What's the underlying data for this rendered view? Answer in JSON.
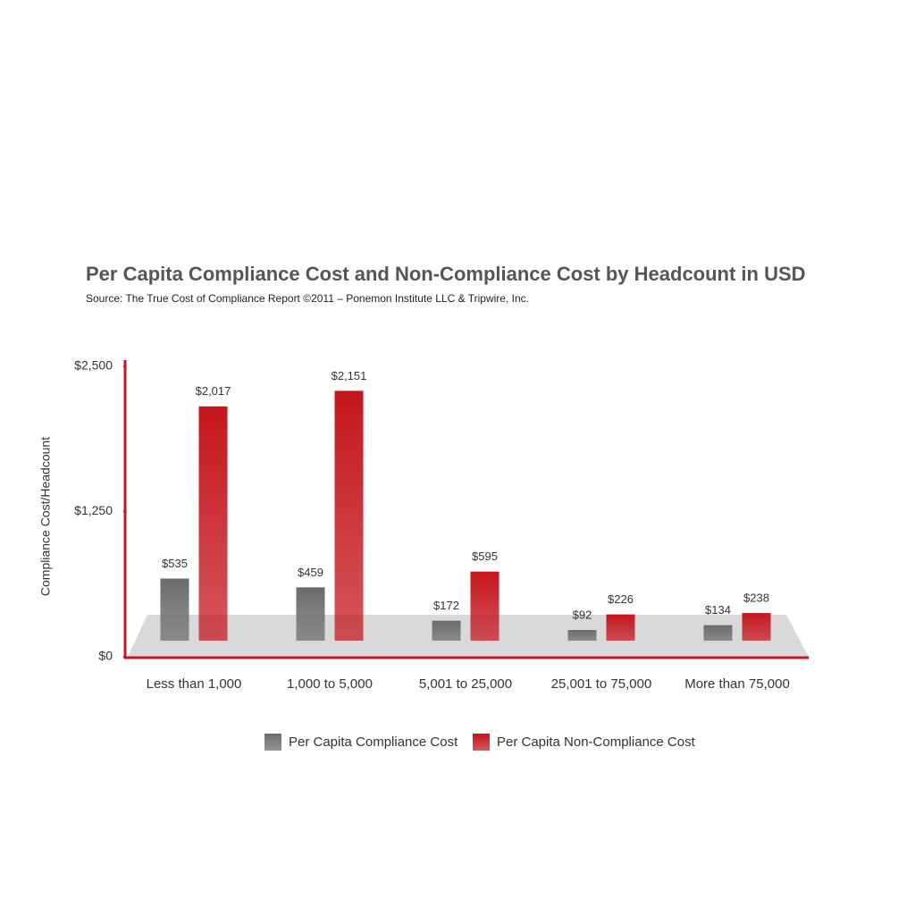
{
  "chart_data": {
    "type": "bar",
    "title": "Per Capita Compliance Cost and Non-Compliance Cost by Headcount in USD",
    "subtitle": "Source: The True Cost of Compliance Report  ©2011 – Ponemon Institute LLC & Tripwire, Inc.",
    "y_label": "Compliance Cost/Headcount",
    "categories": [
      "Less than 1,000",
      "1,000 to 5,000",
      "5,001 to 25,000",
      "25,001 to 75,000",
      "More than 75,000"
    ],
    "series": [
      {
        "name": "Per Capita Compliance Cost",
        "color": "#6b6b6b",
        "values": [
          535,
          459,
          172,
          92,
          134
        ],
        "value_labels": [
          "$535",
          "$459",
          "$172",
          "$92",
          "$134"
        ]
      },
      {
        "name": "Per Capita Non-Compliance Cost",
        "color": "#c4161c",
        "values": [
          2017,
          2151,
          595,
          226,
          238
        ],
        "value_labels": [
          "$2,017",
          "$2,151",
          "$595",
          "$226",
          "$238"
        ]
      }
    ],
    "ylim": [
      0,
      2500
    ],
    "yticks": [
      {
        "value": 0,
        "label": "$0"
      },
      {
        "value": 1250,
        "label": "$1,250"
      },
      {
        "value": 2500,
        "label": "$2,500"
      }
    ],
    "axis_color": "#c4161c"
  }
}
